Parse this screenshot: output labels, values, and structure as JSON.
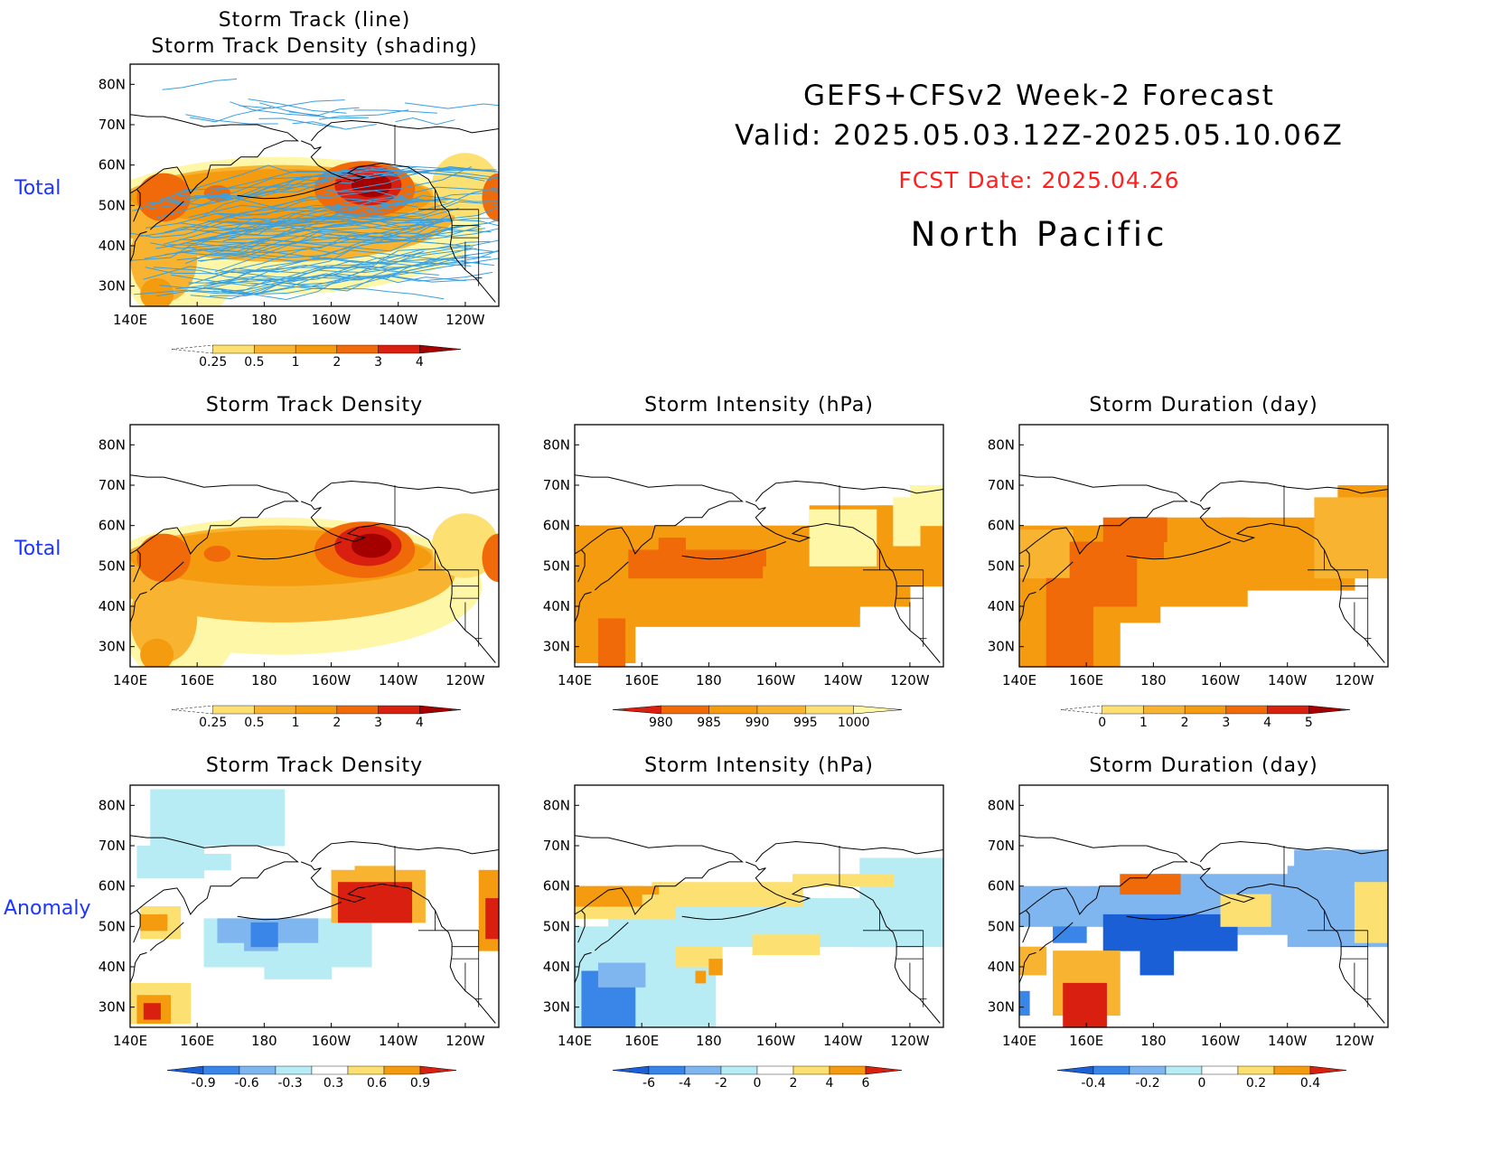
{
  "header": {
    "line1": "GEFS+CFSv2 Week-2 Forecast",
    "line2": "Valid: 2025.05.03.12Z-2025.05.10.06Z",
    "fcst_date": "FCST Date: 2025.04.26",
    "region": "North Pacific",
    "fcst_color": "#ff2020"
  },
  "row_labels": {
    "total_top": "Total",
    "total_mid": "Total",
    "anomaly": "Anomaly"
  },
  "colors": {
    "row_label": "#1c36ff",
    "warm": [
      "#fff7a8",
      "#fde072",
      "#f8b430",
      "#f59b10",
      "#f06a0a",
      "#d92010",
      "#a50000"
    ],
    "cool": [
      "#1b5fd6",
      "#3a86e8",
      "#7fb6f0",
      "#b8ecf5"
    ],
    "track_line": "#3aa0e0"
  },
  "axes": {
    "lon_ticks": [
      "140E",
      "160E",
      "180",
      "160W",
      "140W",
      "120W"
    ],
    "lat_ticks": [
      "80N",
      "70N",
      "60N",
      "50N",
      "40N",
      "30N"
    ]
  },
  "panels": [
    {
      "id": "p1",
      "title1": "Storm Track (line)",
      "title2": "Storm Track Density (shading)",
      "colorbar": {
        "labels": [
          "0.25",
          "0.5",
          "1",
          "2",
          "3",
          "4"
        ],
        "scale": "warm"
      }
    },
    {
      "id": "p2",
      "title1": "Storm Track Density",
      "colorbar": {
        "labels": [
          "0.25",
          "0.5",
          "1",
          "2",
          "3",
          "4"
        ],
        "scale": "warm"
      }
    },
    {
      "id": "p3",
      "title1": "Storm Intensity (hPa)",
      "colorbar": {
        "labels": [
          "980",
          "985",
          "990",
          "995",
          "1000"
        ],
        "scale": "warm_reverse"
      }
    },
    {
      "id": "p4",
      "title1": "Storm Duration (day)",
      "colorbar": {
        "labels": [
          "0",
          "1",
          "2",
          "3",
          "4",
          "5"
        ],
        "scale": "warm"
      }
    },
    {
      "id": "p5",
      "title1": "Storm Track Density",
      "colorbar": {
        "labels": [
          "-0.9",
          "-0.6",
          "-0.3",
          "0.3",
          "0.6",
          "0.9"
        ],
        "scale": "diverging"
      }
    },
    {
      "id": "p6",
      "title1": "Storm Intensity (hPa)",
      "colorbar": {
        "labels": [
          "-6",
          "-4",
          "-2",
          "0",
          "2",
          "4",
          "6"
        ],
        "scale": "diverging"
      }
    },
    {
      "id": "p7",
      "title1": "Storm Duration (day)",
      "colorbar": {
        "labels": [
          "-0.4",
          "-0.2",
          "0",
          "0.2",
          "0.4"
        ],
        "scale": "diverging"
      }
    }
  ]
}
